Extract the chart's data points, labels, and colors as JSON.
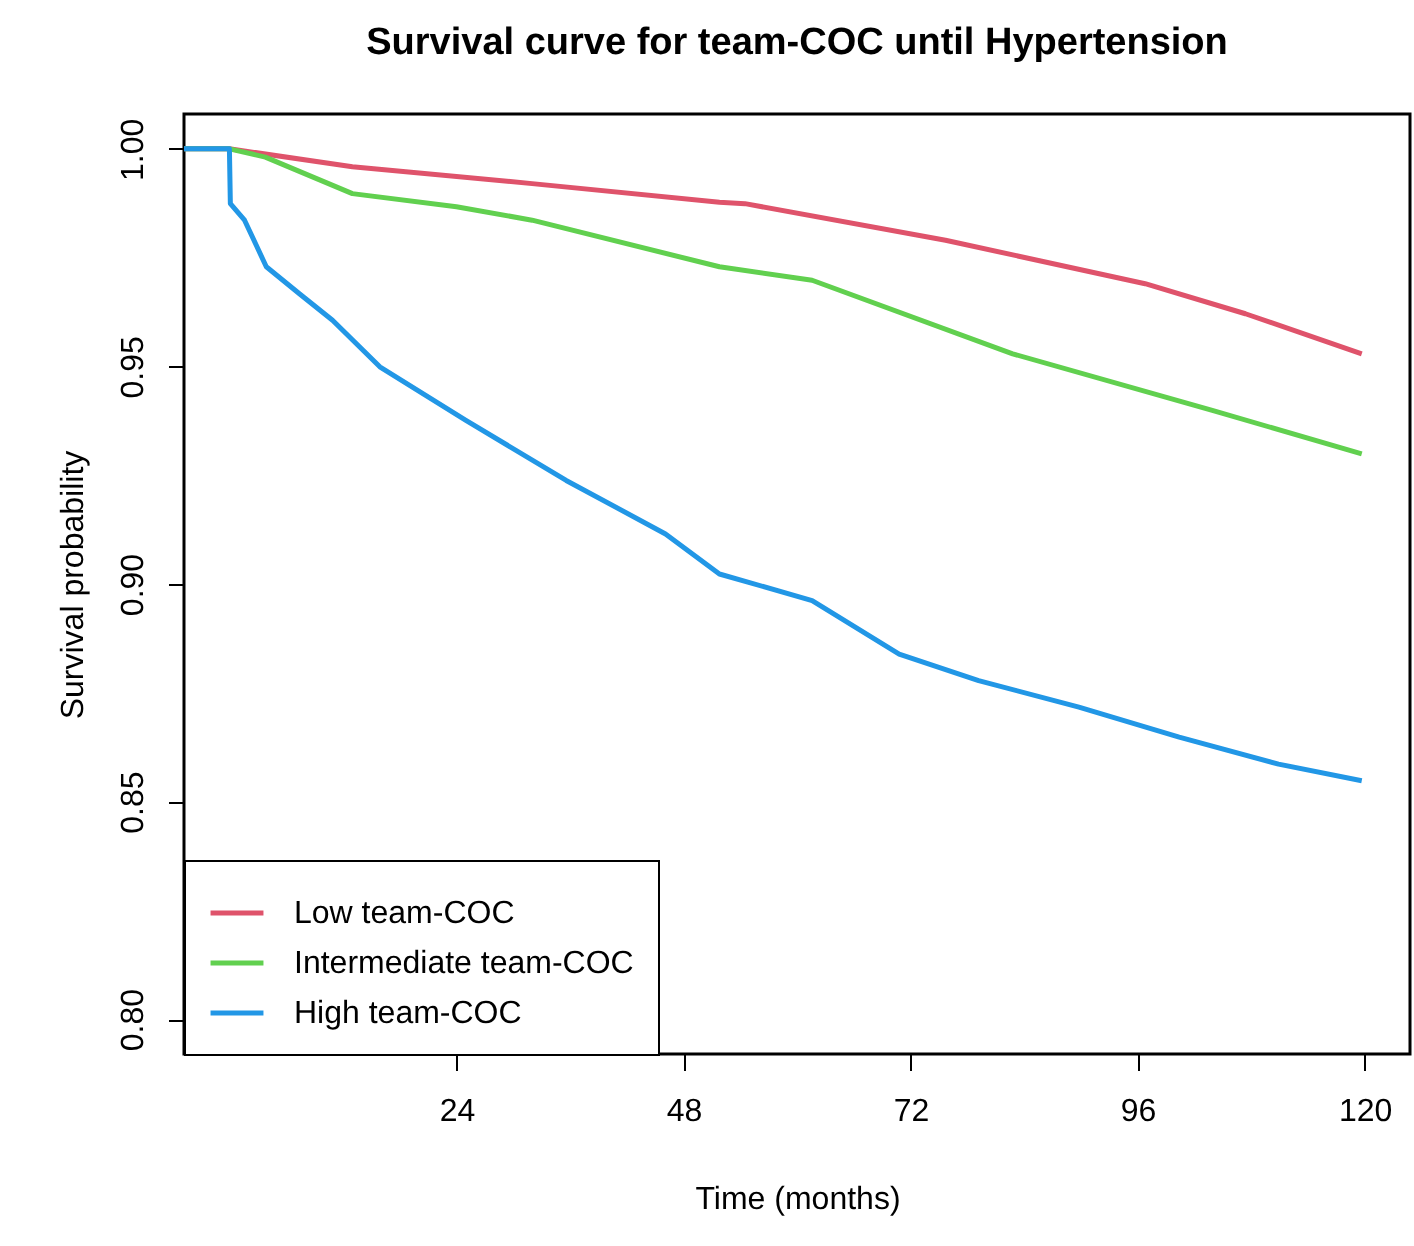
{
  "chart_data": {
    "type": "line",
    "title": "Survival curve for team-COC until Hypertension",
    "xlabel": "Time (months)",
    "ylabel": "Survival probability",
    "xlim": [
      -4.8,
      124.8
    ],
    "ylim": [
      0.792,
      1.008
    ],
    "xticks": [
      24,
      48,
      72,
      96,
      120
    ],
    "yticks": [
      {
        "value": 0.8,
        "label": "0.80"
      },
      0.85,
      {
        "value": 0.9,
        "label": "0.90"
      },
      0.95,
      {
        "value": 1.0,
        "label": "1.00"
      }
    ],
    "grid": false,
    "legend": "bottom left",
    "line_style": "solid",
    "marker": "none",
    "series": [
      {
        "name": "Low team-COC",
        "color": "#df536b",
        "x": [
          -4.8,
          0,
          13,
          32,
          51.8,
          54.5,
          75.7,
          96.8,
          107.4,
          119.7
        ],
        "values": [
          1.0,
          1.0,
          0.9959,
          0.992,
          0.9877,
          0.9874,
          0.979,
          0.969,
          0.9621,
          0.9529
        ]
      },
      {
        "name": "Intermediate team-COC",
        "color": "#61d04f",
        "x": [
          -4.8,
          0,
          3.8,
          13,
          24,
          32,
          51.8,
          61.6,
          82.8,
          103.9,
          119.7
        ],
        "values": [
          1.0,
          1.0,
          0.9981,
          0.9897,
          0.9867,
          0.9836,
          0.9729,
          0.9698,
          0.9529,
          0.9399,
          0.9299
        ]
      },
      {
        "name": "High team-COC",
        "color": "#2297e6",
        "x": [
          -4.8,
          0,
          0.1,
          1.6,
          3.9,
          7.4,
          10.9,
          15.9,
          25,
          35.6,
          46.1,
          51.8,
          61.6,
          70.8,
          79.2,
          89.8,
          100.4,
          110.9,
          119.7
        ],
        "values": [
          1.0,
          1.0,
          0.9874,
          0.9836,
          0.9729,
          0.9667,
          0.9606,
          0.9499,
          0.9376,
          0.9238,
          0.9115,
          0.9023,
          0.8962,
          0.8839,
          0.8778,
          0.8717,
          0.8648,
          0.8586,
          0.8548
        ]
      }
    ]
  }
}
